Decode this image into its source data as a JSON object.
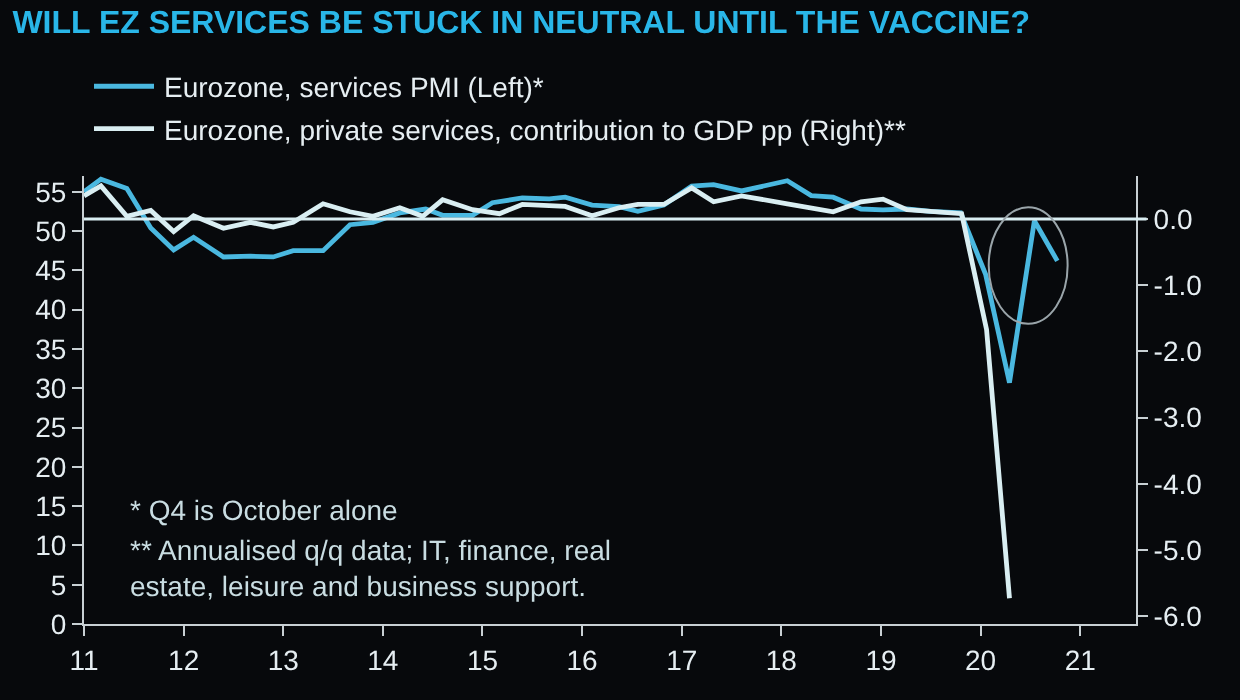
{
  "chart_data": {
    "type": "line",
    "title": "WILL EZ SERVICES BE STUCK IN NEUTRAL UNTIL THE VACCINE?",
    "series": [
      {
        "name": "Eurozone, services PMI (Left)*",
        "color": "#4ab8e0",
        "x": [
          2011.0,
          2011.17,
          2011.43,
          2011.67,
          2011.9,
          2012.1,
          2012.4,
          2012.67,
          2012.9,
          2013.1,
          2013.4,
          2013.67,
          2013.9,
          2014.17,
          2014.43,
          2014.6,
          2014.9,
          2015.1,
          2015.4,
          2015.67,
          2015.83,
          2016.1,
          2016.37,
          2016.56,
          2016.82,
          2017.1,
          2017.32,
          2017.6,
          2018.06,
          2018.3,
          2018.52,
          2018.8,
          2019.02,
          2019.26,
          2019.5,
          2019.8,
          2020.05,
          2020.29,
          2020.54,
          2020.77
        ],
        "values": [
          55.0,
          56.6,
          55.4,
          50.4,
          47.6,
          49.2,
          46.7,
          46.8,
          46.7,
          47.5,
          47.5,
          50.8,
          51.1,
          52.3,
          52.8,
          52.0,
          52.0,
          53.6,
          54.2,
          54.1,
          54.3,
          53.3,
          53.1,
          52.5,
          53.3,
          55.7,
          55.9,
          55.1,
          56.4,
          54.5,
          54.3,
          52.8,
          52.7,
          52.8,
          52.5,
          52.3,
          44.5,
          30.7,
          51.3,
          46.2
        ]
      },
      {
        "name": "Eurozone, private services, contribution to GDP pp (Right)**",
        "color": "#d9eef2",
        "axis": "y2",
        "x": [
          2011.0,
          2011.17,
          2011.43,
          2011.67,
          2011.9,
          2012.1,
          2012.4,
          2012.67,
          2012.9,
          2013.1,
          2013.4,
          2013.67,
          2013.9,
          2014.17,
          2014.4,
          2014.6,
          2014.9,
          2015.17,
          2015.4,
          2015.83,
          2016.1,
          2016.37,
          2016.56,
          2016.82,
          2017.1,
          2017.32,
          2017.6,
          2018.06,
          2018.52,
          2018.8,
          2019.02,
          2019.26,
          2019.81,
          2020.06,
          2020.29
        ],
        "values": [
          0.35,
          0.5,
          0.04,
          0.13,
          -0.19,
          0.05,
          -0.14,
          -0.05,
          -0.12,
          -0.05,
          0.23,
          0.11,
          0.04,
          0.17,
          0.04,
          0.29,
          0.14,
          0.08,
          0.22,
          0.19,
          0.05,
          0.17,
          0.22,
          0.22,
          0.47,
          0.26,
          0.35,
          0.23,
          0.11,
          0.26,
          0.3,
          0.14,
          0.08,
          -1.67,
          -5.73
        ]
      }
    ],
    "xlim": [
      2011,
      2021.56
    ],
    "xticks": [
      {
        "value": 2011,
        "label": "11"
      },
      {
        "value": 2012,
        "label": "12"
      },
      {
        "value": 2013,
        "label": "13"
      },
      {
        "value": 2014,
        "label": "14"
      },
      {
        "value": 2015,
        "label": "15"
      },
      {
        "value": 2016,
        "label": "16"
      },
      {
        "value": 2017,
        "label": "17"
      },
      {
        "value": 2018,
        "label": "18"
      },
      {
        "value": 2019,
        "label": "19"
      },
      {
        "value": 2020,
        "label": "20"
      },
      {
        "value": 2021,
        "label": "21"
      }
    ],
    "ylim": [
      0,
      57
    ],
    "yticks": [
      0,
      5,
      10,
      15,
      20,
      25,
      30,
      35,
      40,
      45,
      50,
      55
    ],
    "y2lim": [
      -6.12,
      0.65
    ],
    "y2ticks": [
      {
        "value": 0,
        "label": "0.0"
      },
      {
        "value": -1,
        "label": "-1.0"
      },
      {
        "value": -2,
        "label": "-2.0"
      },
      {
        "value": -3,
        "label": "-3.0"
      },
      {
        "value": -4,
        "label": "-4.0"
      },
      {
        "value": -5,
        "label": "-5.0"
      },
      {
        "value": -6,
        "label": "-6.0"
      }
    ],
    "ref_lines": [
      {
        "axis": "y2",
        "value": 0,
        "color": "#d9eef2"
      }
    ],
    "annotations": [
      "* Q4 is October alone",
      "** Annualised q/q data; IT, finance, real\nestate, leisure and business support."
    ],
    "legend": "top left",
    "grid": false,
    "marker": "none",
    "line_style": "solid"
  }
}
